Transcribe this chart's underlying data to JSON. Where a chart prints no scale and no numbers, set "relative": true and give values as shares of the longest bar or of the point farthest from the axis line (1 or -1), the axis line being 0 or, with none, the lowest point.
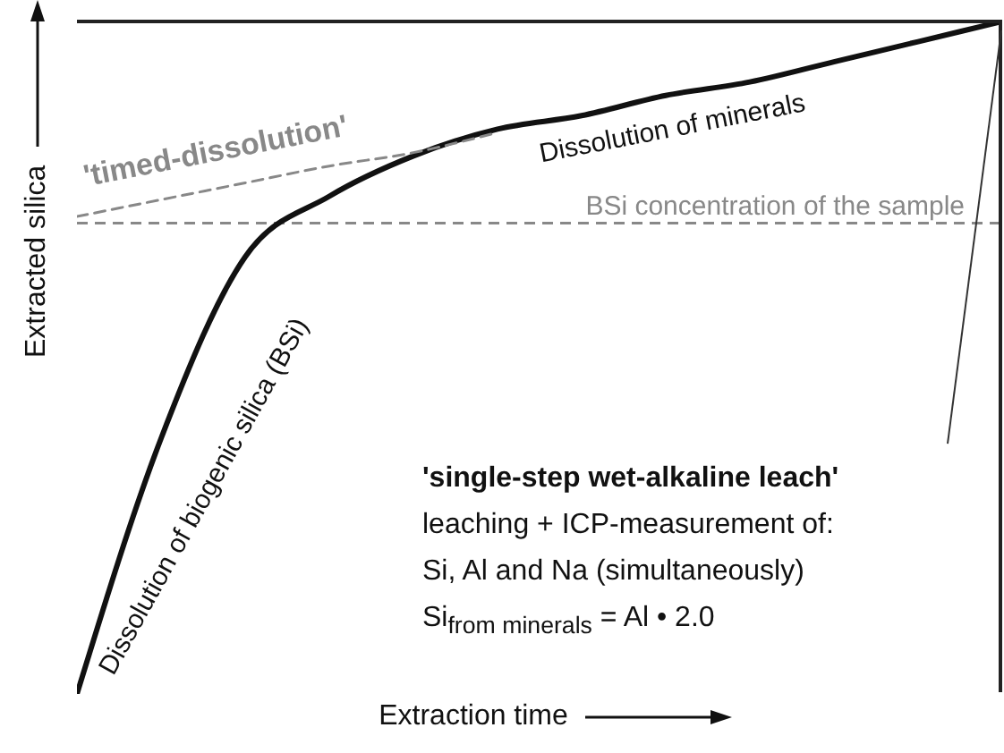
{
  "chart_data": {
    "type": "line",
    "relative": true,
    "xlabel": "Extraction time",
    "ylabel": "Extracted silica",
    "categories": [
      null,
      null,
      null,
      null,
      null,
      null,
      null,
      null,
      null,
      null,
      null,
      null
    ],
    "series": [
      {
        "color": "#111111",
        "line_style": "solid",
        "values": [
          0,
          0.38,
          0.65,
          0.74,
          0.8,
          0.84,
          0.86,
          0.89,
          0.91,
          0.94,
          0.97,
          1
        ]
      },
      {
        "name": "'timed-dissolution'",
        "color": "#888888",
        "line_style": "dashed",
        "values": [
          0.71,
          0.735,
          0.76,
          0.785,
          0.805,
          0.835,
          null,
          null,
          null,
          null,
          null,
          null
        ]
      }
    ],
    "ref_lines": [
      {
        "axis": "y",
        "value": 0.7,
        "label": "BSi concentration of the sample",
        "color": "#888888",
        "line_style": "dashed"
      }
    ],
    "annotations": [
      "Dissolution of biogenic silica (BSi)",
      "Dissolution of minerals",
      "'single-step wet-alkaline leach'",
      "leaching + ICP-measurement of:",
      "Si, Al and Na (simultaneously)",
      "Si$_{from minerals}$ = Al • 2.0"
    ],
    "marker": "none",
    "grid": false,
    "legend": false
  }
}
